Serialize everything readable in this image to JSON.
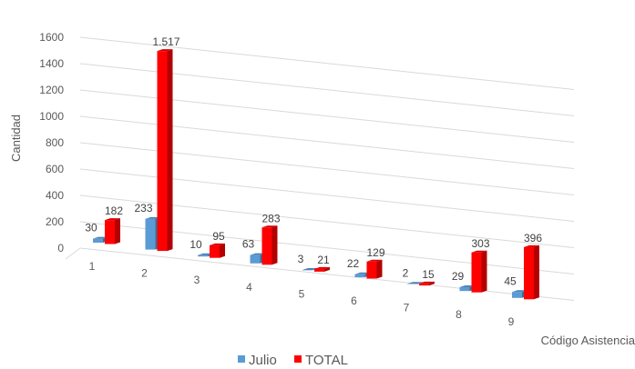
{
  "chart_data": {
    "type": "bar",
    "categories": [
      "1",
      "2",
      "3",
      "4",
      "5",
      "6",
      "7",
      "8",
      "9"
    ],
    "series": [
      {
        "name": "Julio",
        "values": [
          30,
          233,
          10,
          63,
          3,
          22,
          2,
          29,
          45
        ],
        "labels": [
          "30",
          "233",
          "10",
          "63",
          "3",
          "22",
          "2",
          "29",
          "45"
        ],
        "color": "#5b9bd5"
      },
      {
        "name": "TOTAL",
        "values": [
          182,
          1517,
          95,
          283,
          21,
          129,
          15,
          303,
          396
        ],
        "labels": [
          "182",
          "1.517",
          "95",
          "283",
          "21",
          "129",
          "15",
          "303",
          "396"
        ],
        "color": "#ff0000"
      }
    ],
    "ylim": [
      0,
      1600
    ],
    "yticks": [
      "0",
      "200",
      "400",
      "600",
      "800",
      "1000",
      "1200",
      "1400",
      "1600"
    ],
    "xlabel": "Código Asistencia",
    "ylabel": "Cantidad",
    "grid": true,
    "legend": "bottom",
    "style": "3d-perspective"
  }
}
